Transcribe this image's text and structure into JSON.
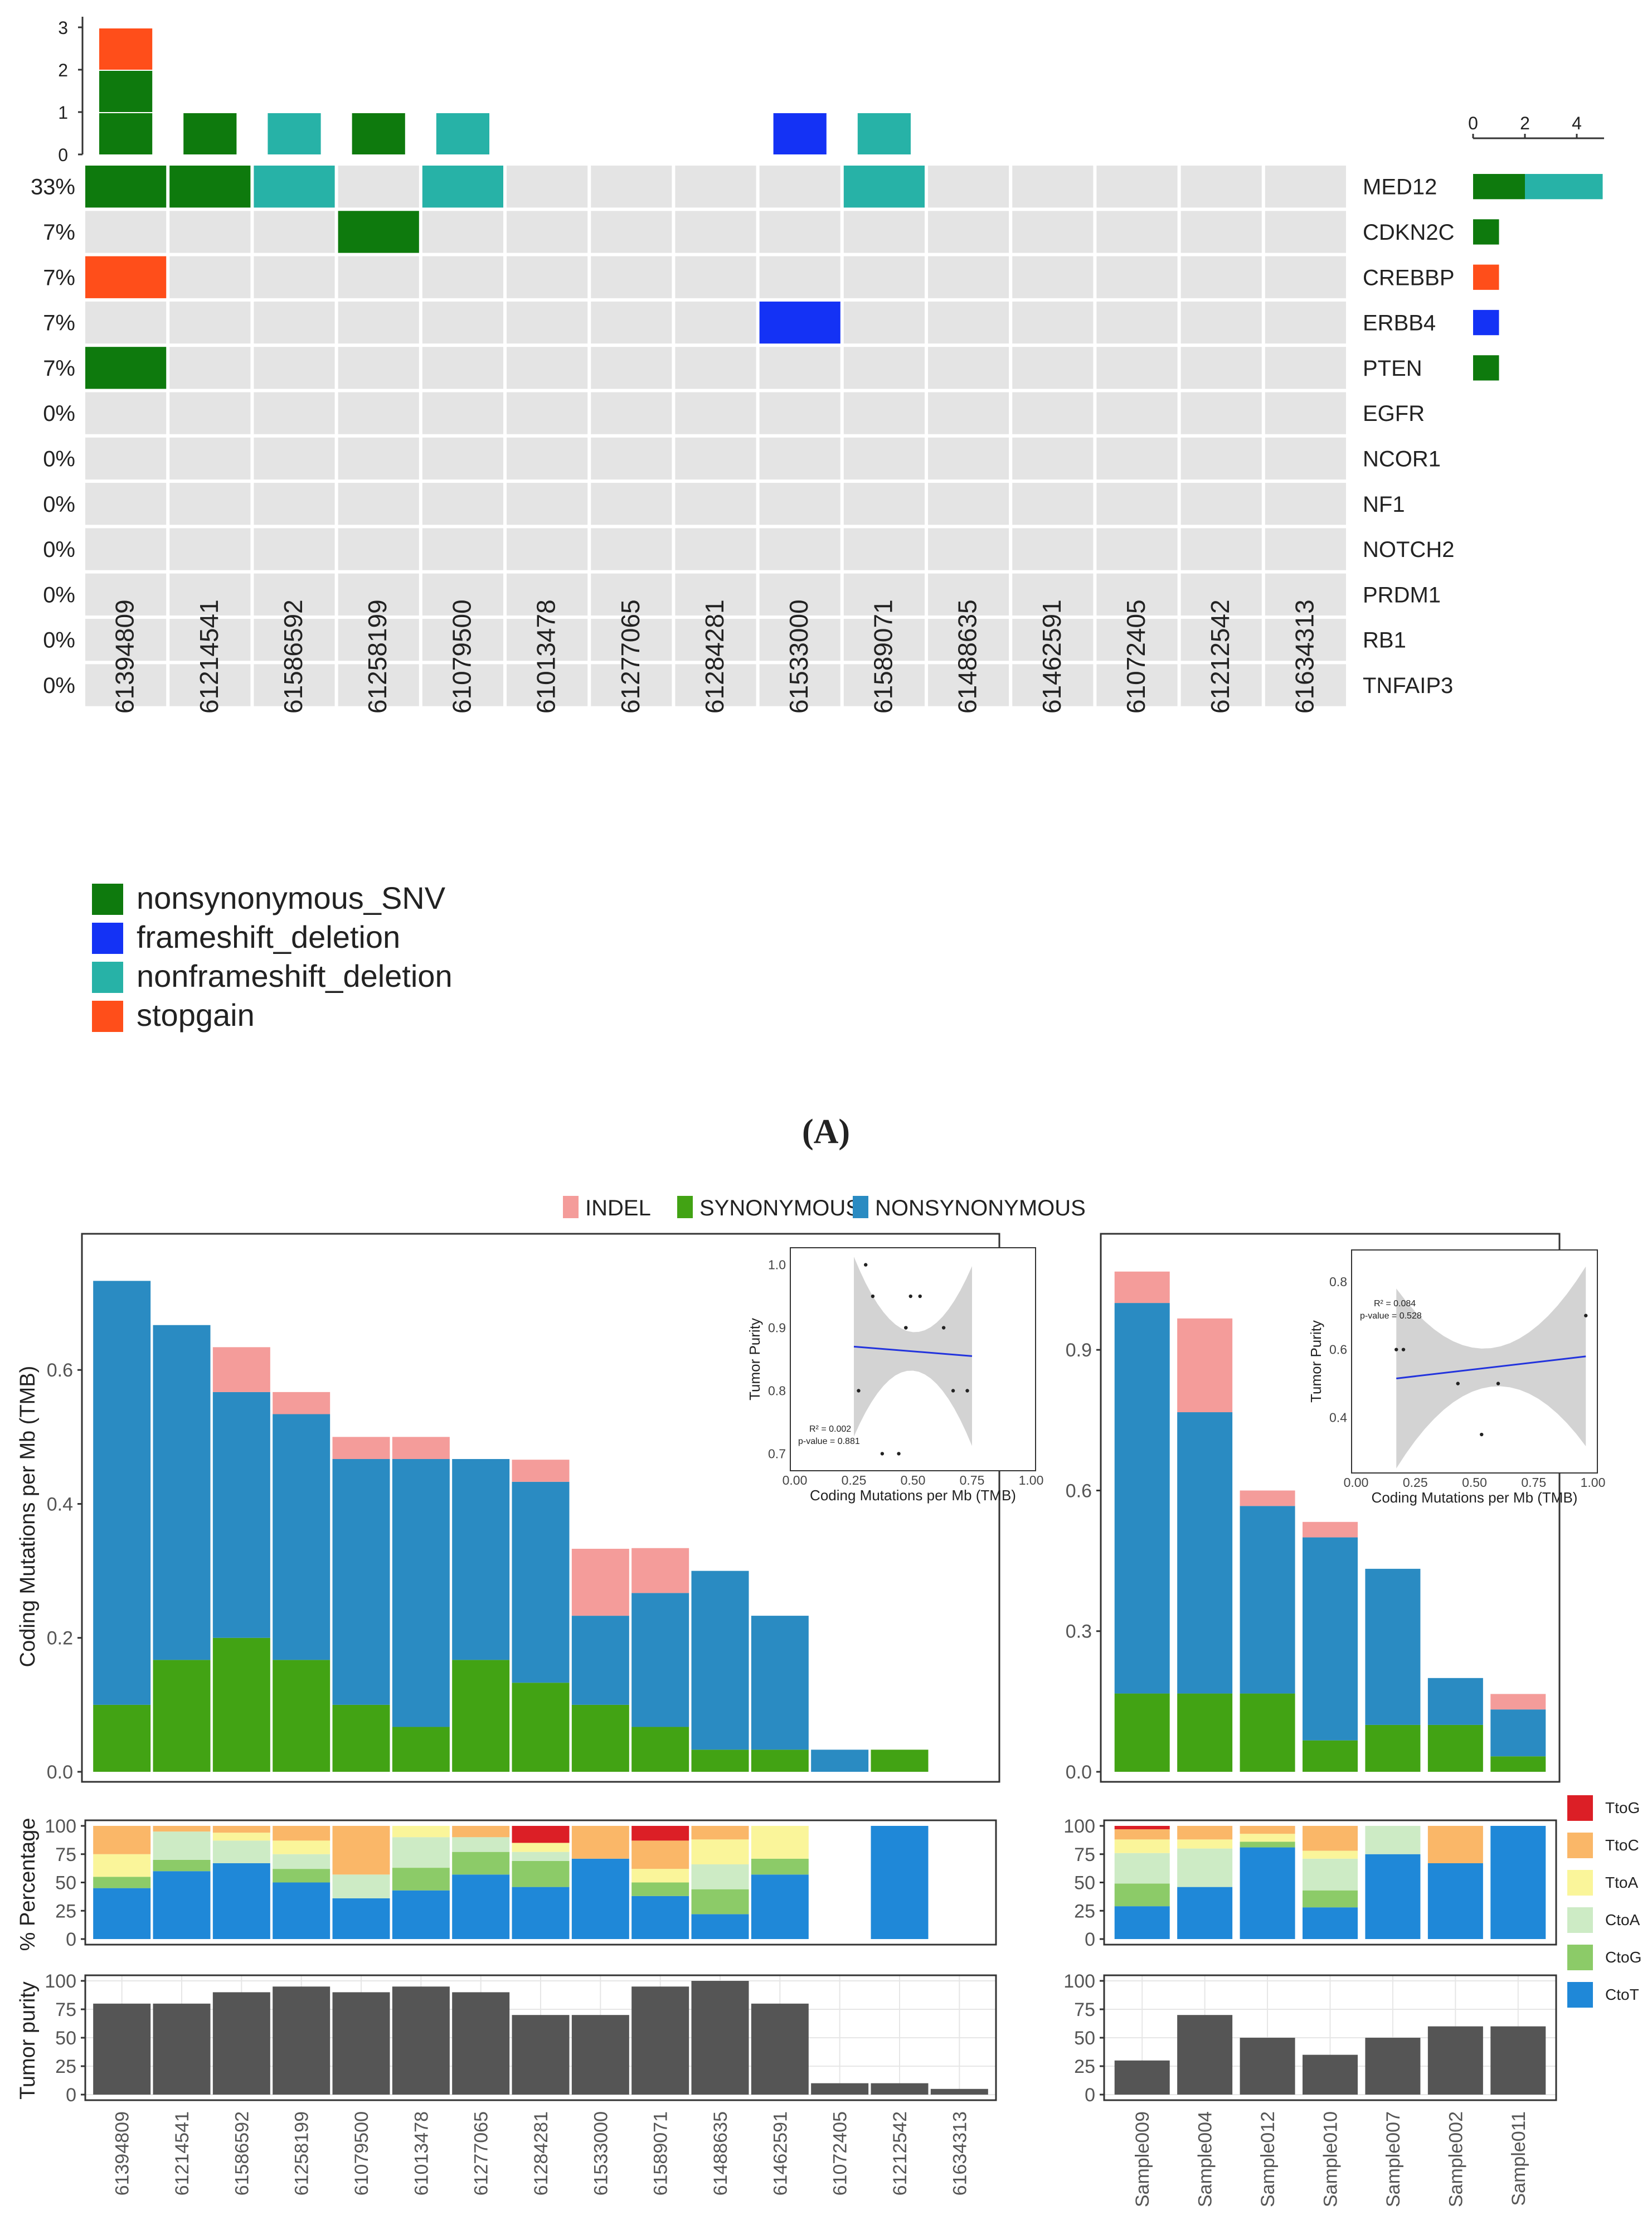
{
  "chart_data": [
    {
      "type": "heatmap",
      "name": "oncoplot",
      "panel_label": "(A)",
      "samples": [
        "61394809",
        "61214541",
        "61586592",
        "61258199",
        "61079500",
        "61013478",
        "61277065",
        "61284281",
        "61533000",
        "61589071",
        "61488635",
        "61462591",
        "61072405",
        "61212542",
        "61634313"
      ],
      "genes": [
        "MED12",
        "CDKN2C",
        "CREBBP",
        "ERBB4",
        "PTEN",
        "EGFR",
        "NCOR1",
        "NF1",
        "NOTCH2",
        "PRDM1",
        "RB1",
        "TNFAIP3"
      ],
      "gene_percent": [
        "33%",
        "7%",
        "7%",
        "7%",
        "7%",
        "0%",
        "0%",
        "0%",
        "0%",
        "0%",
        "0%",
        "0%"
      ],
      "variant_types": {
        "nonsynonymous_SNV": "#0E7A0D",
        "frameshift_deletion": "#1432F5",
        "nonframeshift_deletion": "#27B2A7",
        "stopgain": "#FF4E1A"
      },
      "legend": [
        "nonsynonymous_SNV",
        "frameshift_deletion",
        "nonframeshift_deletion",
        "stopgain"
      ],
      "mutations": [
        {
          "gene": "MED12",
          "sample": "61394809",
          "type": "nonsynonymous_SNV"
        },
        {
          "gene": "MED12",
          "sample": "61214541",
          "type": "nonsynonymous_SNV"
        },
        {
          "gene": "MED12",
          "sample": "61586592",
          "type": "nonframeshift_deletion"
        },
        {
          "gene": "MED12",
          "sample": "61079500",
          "type": "nonframeshift_deletion"
        },
        {
          "gene": "MED12",
          "sample": "61589071",
          "type": "nonframeshift_deletion"
        },
        {
          "gene": "CDKN2C",
          "sample": "61258199",
          "type": "nonsynonymous_SNV"
        },
        {
          "gene": "CREBBP",
          "sample": "61394809",
          "type": "stopgain"
        },
        {
          "gene": "ERBB4",
          "sample": "61533000",
          "type": "frameshift_deletion"
        },
        {
          "gene": "PTEN",
          "sample": "61394809",
          "type": "nonsynonymous_SNV"
        }
      ],
      "top_ticks": [
        "0",
        "1",
        "2",
        "3"
      ],
      "right_ticks": [
        "0",
        "2",
        "4"
      ],
      "right_counts": [
        {
          "gene": "MED12",
          "segments": [
            {
              "type": "nonsynonymous_SNV",
              "n": 2
            },
            {
              "type": "nonframeshift_deletion",
              "n": 3
            }
          ]
        },
        {
          "gene": "CDKN2C",
          "segments": [
            {
              "type": "nonsynonymous_SNV",
              "n": 1
            }
          ]
        },
        {
          "gene": "CREBBP",
          "segments": [
            {
              "type": "stopgain",
              "n": 1
            }
          ]
        },
        {
          "gene": "ERBB4",
          "segments": [
            {
              "type": "frameshift_deletion",
              "n": 1
            }
          ]
        },
        {
          "gene": "PTEN",
          "segments": [
            {
              "type": "nonsynonymous_SNV",
              "n": 1
            }
          ]
        }
      ]
    },
    {
      "type": "bar",
      "name": "tmb-left",
      "stacked": true,
      "ylabel": "Coding Mutations per Mb (TMB)",
      "yticks": [
        "0.0",
        "0.2",
        "0.4",
        "0.6"
      ],
      "ylim": [
        0,
        0.77
      ],
      "legend": [
        "INDEL",
        "SYNONYMOUS",
        "NONSYNONYMOUS"
      ],
      "colors": {
        "INDEL": "#F49C9A",
        "SYNONYMOUS": "#42A314",
        "NONSYNONYMOUS": "#2A8BC2"
      },
      "categories": [
        "61394809",
        "61214541",
        "61586592",
        "61258199",
        "61079500",
        "61013478",
        "61277065",
        "61284281",
        "61533000",
        "61589071",
        "61488635",
        "61462591",
        "61072405",
        "61212542",
        "61634313"
      ],
      "series": [
        {
          "name": "SYNONYMOUS",
          "values": [
            0.1,
            0.167,
            0.2,
            0.167,
            0.1,
            0.067,
            0.167,
            0.133,
            0.1,
            0.067,
            0.033,
            0.033,
            0,
            0.033,
            0
          ]
        },
        {
          "name": "NONSYNONYMOUS",
          "values": [
            0.633,
            0.5,
            0.367,
            0.367,
            0.367,
            0.4,
            0.3,
            0.3,
            0.133,
            0.2,
            0.267,
            0.2,
            0.033,
            0,
            0
          ]
        },
        {
          "name": "INDEL",
          "values": [
            0,
            0,
            0.067,
            0.033,
            0.033,
            0.033,
            0,
            0.033,
            0.1,
            0.067,
            0,
            0,
            0,
            0,
            0
          ]
        }
      ]
    },
    {
      "type": "scatter",
      "name": "inset-left",
      "xlabel": "Coding Mutations per Mb (TMB)",
      "ylabel": "Tumor Purity",
      "xticks": [
        "0.00",
        "0.25",
        "0.50",
        "0.75",
        "1.00"
      ],
      "yticks": [
        "0.7",
        "0.8",
        "0.9",
        "1.0"
      ],
      "xlim": [
        0,
        1
      ],
      "ylim": [
        0.68,
        1.02
      ],
      "r2": "R² = 0.002",
      "pvalue": "p-value = 0.881",
      "x": [
        0.3,
        0.33,
        0.37,
        0.44,
        0.47,
        0.49,
        0.53,
        0.63,
        0.67,
        0.73,
        0.27,
        0.47
      ],
      "y": [
        1.0,
        0.95,
        0.7,
        0.7,
        0.9,
        0.95,
        0.95,
        0.9,
        0.8,
        0.8,
        0.8,
        0.9
      ],
      "fit": {
        "x": [
          0.25,
          0.75
        ],
        "y": [
          0.87,
          0.855
        ]
      }
    },
    {
      "type": "bar",
      "name": "tmb-right",
      "stacked": true,
      "yticks": [
        "0.0",
        "0.3",
        "0.6",
        "0.9"
      ],
      "ylim": [
        0,
        1.1
      ],
      "categories": [
        "Sample009",
        "Sample004",
        "Sample012",
        "Sample010",
        "Sample007",
        "Sample002",
        "Sample011"
      ],
      "series": [
        {
          "name": "SYNONYMOUS",
          "values": [
            0.167,
            0.167,
            0.167,
            0.067,
            0.1,
            0.1,
            0.033
          ]
        },
        {
          "name": "NONSYNONYMOUS",
          "values": [
            0.833,
            0.6,
            0.4,
            0.433,
            0.333,
            0.1,
            0.1
          ]
        },
        {
          "name": "INDEL",
          "values": [
            0.067,
            0.2,
            0.033,
            0.033,
            0,
            0,
            0.033
          ]
        }
      ]
    },
    {
      "type": "scatter",
      "name": "inset-right",
      "xlabel": "Coding Mutations per Mb (TMB)",
      "ylabel": "Tumor Purity",
      "xticks": [
        "0.00",
        "0.25",
        "0.50",
        "0.75",
        "1.00"
      ],
      "yticks": [
        "0.4",
        "0.6",
        "0.8"
      ],
      "xlim": [
        0,
        1
      ],
      "ylim": [
        0.25,
        0.88
      ],
      "r2": "R² = 0.084",
      "pvalue": "p-value = 0.528",
      "x": [
        0.17,
        0.2,
        0.43,
        0.53,
        0.6,
        0.97
      ],
      "y": [
        0.6,
        0.6,
        0.5,
        0.35,
        0.5,
        0.7
      ],
      "fit": {
        "x": [
          0.17,
          0.97
        ],
        "y": [
          0.515,
          0.58
        ]
      }
    },
    {
      "type": "bar",
      "name": "signature-left",
      "stacked": true,
      "ylabel": "% Percentage",
      "yticks": [
        "0",
        "25",
        "50",
        "75",
        "100"
      ],
      "ylim": [
        0,
        100
      ],
      "legend": [
        "TtoG",
        "TtoC",
        "TtoA",
        "CtoA",
        "CtoG",
        "CtoT"
      ],
      "colors": {
        "TtoG": "#DC1F26",
        "TtoC": "#FAB768",
        "TtoA": "#FAF59A",
        "CtoA": "#CDEBC5",
        "CtoG": "#8CCB68",
        "CtoT": "#1F88D8"
      },
      "categories": [
        "61394809",
        "61214541",
        "61586592",
        "61258199",
        "61079500",
        "61013478",
        "61277065",
        "61284281",
        "61533000",
        "61589071",
        "61488635",
        "61462591",
        "61072405",
        "61212542",
        "61634313"
      ],
      "series": [
        {
          "name": "CtoT",
          "values": [
            45,
            60,
            67,
            50,
            36,
            43,
            57,
            46,
            71,
            38,
            22,
            57,
            0,
            100,
            0
          ]
        },
        {
          "name": "CtoG",
          "values": [
            10,
            10,
            0,
            12,
            0,
            20,
            20,
            23,
            0,
            12,
            22,
            14,
            0,
            0,
            0
          ]
        },
        {
          "name": "CtoA",
          "values": [
            0,
            25,
            20,
            13,
            21,
            27,
            13,
            8,
            0,
            0,
            22,
            0,
            0,
            0,
            0
          ]
        },
        {
          "name": "TtoA",
          "values": [
            20,
            0,
            7,
            12,
            0,
            10,
            0,
            8,
            0,
            12,
            22,
            29,
            0,
            0,
            0
          ]
        },
        {
          "name": "TtoC",
          "values": [
            25,
            5,
            6,
            13,
            43,
            0,
            10,
            0,
            29,
            25,
            12,
            0,
            0,
            0,
            0
          ]
        },
        {
          "name": "TtoG",
          "values": [
            0,
            0,
            0,
            0,
            0,
            0,
            0,
            15,
            0,
            13,
            0,
            0,
            0,
            0,
            0
          ]
        }
      ]
    },
    {
      "type": "bar",
      "name": "signature-right",
      "stacked": true,
      "yticks": [
        "0",
        "25",
        "50",
        "75",
        "100"
      ],
      "ylim": [
        0,
        100
      ],
      "categories": [
        "Sample009",
        "Sample004",
        "Sample012",
        "Sample010",
        "Sample007",
        "Sample002",
        "Sample011"
      ],
      "series": [
        {
          "name": "CtoT",
          "values": [
            29,
            46,
            81,
            28,
            75,
            67,
            100
          ]
        },
        {
          "name": "CtoG",
          "values": [
            20,
            0,
            5,
            15,
            0,
            0,
            0
          ]
        },
        {
          "name": "CtoA",
          "values": [
            27,
            34,
            0,
            28,
            25,
            0,
            0
          ]
        },
        {
          "name": "TtoA",
          "values": [
            12,
            8,
            7,
            7,
            0,
            0,
            0
          ]
        },
        {
          "name": "TtoC",
          "values": [
            9,
            12,
            7,
            22,
            0,
            33,
            0
          ]
        },
        {
          "name": "TtoG",
          "values": [
            3,
            0,
            0,
            0,
            0,
            0,
            0
          ]
        }
      ]
    },
    {
      "type": "bar",
      "name": "purity-left",
      "ylabel": "Tumor purity",
      "yticks": [
        "0",
        "25",
        "50",
        "75",
        "100"
      ],
      "ylim": [
        0,
        100
      ],
      "categories": [
        "61394809",
        "61214541",
        "61586592",
        "61258199",
        "61079500",
        "61013478",
        "61277065",
        "61284281",
        "61533000",
        "61589071",
        "61488635",
        "61462591",
        "61072405",
        "61212542",
        "61634313"
      ],
      "values": [
        80,
        80,
        90,
        95,
        90,
        95,
        90,
        70,
        70,
        95,
        100,
        80,
        10,
        10,
        5
      ]
    },
    {
      "type": "bar",
      "name": "purity-right",
      "yticks": [
        "0",
        "25",
        "50",
        "75",
        "100"
      ],
      "ylim": [
        0,
        100
      ],
      "categories": [
        "Sample009",
        "Sample004",
        "Sample012",
        "Sample010",
        "Sample007",
        "Sample002",
        "Sample011"
      ],
      "values": [
        30,
        70,
        50,
        35,
        50,
        60,
        60
      ]
    }
  ]
}
